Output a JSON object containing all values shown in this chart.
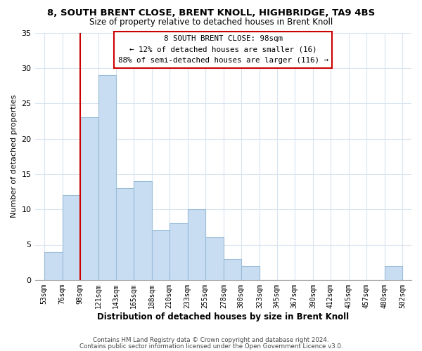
{
  "title": "8, SOUTH BRENT CLOSE, BRENT KNOLL, HIGHBRIDGE, TA9 4BS",
  "subtitle": "Size of property relative to detached houses in Brent Knoll",
  "xlabel": "Distribution of detached houses by size in Brent Knoll",
  "ylabel": "Number of detached properties",
  "bins": [
    53,
    76,
    98,
    121,
    143,
    165,
    188,
    210,
    233,
    255,
    278,
    300,
    323,
    345,
    367,
    390,
    412,
    435,
    457,
    480,
    502
  ],
  "counts": [
    4,
    12,
    23,
    29,
    13,
    14,
    7,
    8,
    10,
    6,
    3,
    2,
    0,
    0,
    0,
    0,
    0,
    0,
    0,
    2
  ],
  "bar_color": "#c8ddf2",
  "bar_edge_color": "#9abcd8",
  "reference_line_x": 98,
  "reference_line_color": "#cc0000",
  "ylim": [
    0,
    35
  ],
  "yticks": [
    0,
    5,
    10,
    15,
    20,
    25,
    30,
    35
  ],
  "annotation_title": "8 SOUTH BRENT CLOSE: 98sqm",
  "annotation_line1": "← 12% of detached houses are smaller (16)",
  "annotation_line2": "88% of semi-detached houses are larger (116) →",
  "annotation_box_color": "#ffffff",
  "annotation_box_edge": "#cc0000",
  "footer_line1": "Contains HM Land Registry data © Crown copyright and database right 2024.",
  "footer_line2": "Contains public sector information licensed under the Open Government Licence v3.0.",
  "tick_labels": [
    "53sqm",
    "76sqm",
    "98sqm",
    "121sqm",
    "143sqm",
    "165sqm",
    "188sqm",
    "210sqm",
    "233sqm",
    "255sqm",
    "278sqm",
    "300sqm",
    "323sqm",
    "345sqm",
    "367sqm",
    "390sqm",
    "412sqm",
    "435sqm",
    "457sqm",
    "480sqm",
    "502sqm"
  ],
  "background_color": "#ffffff",
  "grid_color": "#d8e4f0"
}
